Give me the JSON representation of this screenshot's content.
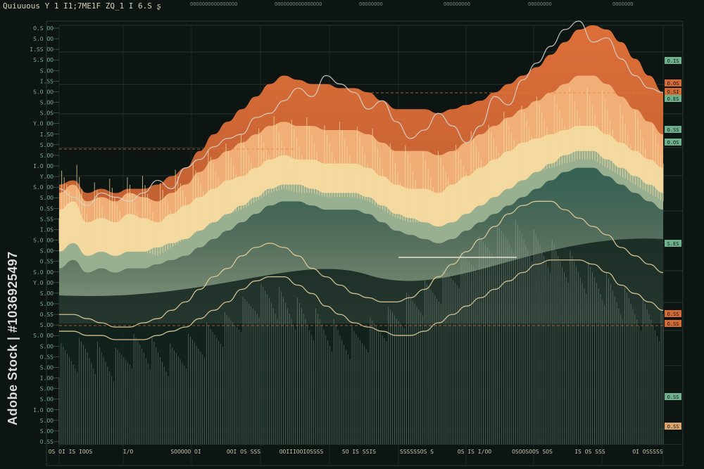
{
  "header": {
    "title": "Quiuuous  Y 1  I1;7ME1F  ZQ_1 I 6.S ʂ"
  },
  "watermark": {
    "text": "Adobe Stock | #1036925497"
  },
  "colors": {
    "background": "#0c1512",
    "grid": "#3c4a44",
    "orange": "#e8743b",
    "peach": "#f2b27a",
    "cream": "#f3dba1",
    "sage": "#8eaa8e",
    "teal": "#2f5e52",
    "deep_teal": "#1c3a33",
    "line_white": "#d7d5cf",
    "line_cream": "#e6cf9c"
  },
  "chart_data": {
    "type": "area",
    "title": "",
    "xlabel": "",
    "ylabel": "",
    "grid": true,
    "x": [
      0,
      1,
      2,
      3,
      4,
      5,
      6,
      7,
      8,
      9,
      10,
      11,
      12,
      13,
      14,
      15,
      16,
      17,
      18,
      19,
      20,
      21,
      22,
      23,
      24,
      25,
      26,
      27,
      28,
      29,
      30,
      31,
      32,
      33,
      34,
      35,
      36,
      37,
      38,
      39,
      40,
      41,
      42,
      43
    ],
    "ylim": [
      0,
      100
    ],
    "series": [
      {
        "values": [
          62,
          63,
          60,
          61,
          60,
          61,
          61,
          62,
          64,
          66,
          70,
          74,
          77,
          80,
          83,
          86,
          88,
          87,
          86,
          86,
          85,
          85,
          84,
          82,
          80,
          80,
          80,
          79,
          80,
          81,
          82,
          84,
          86,
          88,
          90,
          93,
          96,
          99,
          100,
          99,
          96,
          92,
          88,
          84
        ],
        "style": "orange-area"
      },
      {
        "values": [
          60,
          62,
          58,
          59,
          58,
          60,
          59,
          58,
          60,
          62,
          65,
          68,
          70,
          72,
          74,
          76,
          77,
          76,
          76,
          75,
          75,
          75,
          74,
          72,
          70,
          70,
          70,
          69,
          70,
          72,
          74,
          76,
          78,
          80,
          82,
          84,
          86,
          88,
          88,
          86,
          83,
          80,
          77,
          74
        ],
        "style": "peach-area"
      },
      {
        "values": [
          56,
          58,
          53,
          54,
          53,
          55,
          54,
          53,
          55,
          57,
          59,
          61,
          63,
          64,
          66,
          68,
          69,
          68,
          68,
          67,
          67,
          67,
          66,
          64,
          62,
          61,
          61,
          60,
          62,
          64,
          66,
          68,
          70,
          72,
          73,
          74,
          75,
          76,
          76,
          74,
          72,
          70,
          68,
          66
        ],
        "style": "cream-area"
      },
      {
        "values": [
          46,
          48,
          45,
          46,
          45,
          46,
          46,
          47,
          48,
          49,
          51,
          53,
          55,
          57,
          59,
          61,
          62,
          62,
          61,
          60,
          60,
          60,
          59,
          57,
          55,
          54,
          53,
          52,
          53,
          55,
          57,
          59,
          61,
          63,
          65,
          67,
          69,
          70,
          70,
          68,
          66,
          64,
          62,
          60
        ],
        "style": "sage-area"
      },
      {
        "values": [
          42,
          44,
          41,
          42,
          41,
          42,
          42,
          43,
          44,
          45,
          47,
          49,
          51,
          53,
          55,
          57,
          58,
          58,
          57,
          56,
          56,
          56,
          55,
          53,
          51,
          50,
          49,
          48,
          49,
          51,
          53,
          55,
          57,
          59,
          61,
          63,
          65,
          66,
          66,
          64,
          62,
          60,
          58,
          56
        ],
        "style": "teal-area"
      },
      {
        "values": [
          61,
          59,
          57,
          60,
          59,
          58,
          60,
          63,
          61,
          66,
          68,
          71,
          73,
          74,
          78,
          79,
          82,
          85,
          83,
          88,
          86,
          84,
          80,
          82,
          77,
          73,
          75,
          79,
          76,
          72,
          76,
          83,
          81,
          87,
          91,
          95,
          99,
          101,
          96,
          97,
          92,
          88,
          85,
          84
        ],
        "style": "white-line"
      },
      {
        "values": [
          27,
          27,
          26,
          26,
          25,
          25,
          25,
          26,
          27,
          28,
          30,
          32,
          34,
          37,
          39,
          40,
          40,
          38,
          36,
          33,
          31,
          29,
          28,
          27,
          26,
          26,
          27,
          29,
          31,
          33,
          35,
          37,
          39,
          41,
          43,
          44,
          44,
          44,
          43,
          41,
          38,
          36,
          34,
          32
        ],
        "style": "cream-line"
      },
      {
        "values": [
          31,
          31,
          30,
          29,
          28,
          28,
          29,
          30,
          32,
          34,
          37,
          40,
          42,
          45,
          47,
          48,
          47,
          45,
          42,
          40,
          38,
          36,
          35,
          34,
          34,
          35,
          37,
          40,
          43,
          46,
          49,
          52,
          55,
          57,
          58,
          58,
          56,
          54,
          52,
          50,
          47,
          45,
          43,
          41
        ],
        "style": "cream-line"
      },
      {
        "values": [
          20,
          21,
          22,
          20,
          19,
          22,
          23,
          21,
          20,
          22,
          24,
          26,
          28,
          31,
          34,
          35,
          33,
          31,
          29,
          27,
          25,
          24,
          26,
          28,
          30,
          33,
          35,
          37,
          40,
          43,
          46,
          48,
          50,
          49,
          47,
          45,
          43,
          41,
          39,
          37,
          34,
          32,
          30,
          28
        ],
        "style": "volume"
      }
    ]
  },
  "y_tick_labels": [
    "O.S OO",
    "S.O OO",
    "I.SS OO",
    "S.S OO",
    "S.OO",
    "I.SS",
    "S.O OO",
    "S.OO",
    "S.OS",
    "Y.O OO",
    "I.SO",
    "S.OO",
    "S.OO",
    "I.O OO",
    "Y.OO",
    "S.O OO",
    "S.OO",
    "O.SS",
    "S.SS",
    "I.OS",
    "S.O OO",
    "S.OO",
    "O.SS",
    "S.O OO",
    "Y.O OO",
    "S.OO",
    "S.OO",
    "O.SS",
    "S.OO",
    "S.O OO",
    "S.OO",
    "O.SS",
    "S.OO",
    "I.OO",
    "S.OO",
    "S.OO",
    "I.O OO",
    "S.OO",
    "S.OO",
    "O.SS"
  ],
  "right_badges": [
    {
      "label": "O.IS",
      "color": "#7ac29a",
      "kind": "green"
    },
    {
      "label": "O.OS",
      "color": "#e8743b",
      "kind": "orange"
    },
    {
      "label": "O.SI",
      "color": "#e8743b",
      "kind": "orange"
    },
    {
      "label": "O.ES",
      "color": "#7ac29a",
      "kind": "green"
    },
    {
      "label": "O.SS",
      "color": "#7ac29a",
      "kind": "green"
    },
    {
      "label": "O.OS",
      "color": "#7ac29a",
      "kind": "green"
    },
    {
      "label": "S.ES",
      "color": "#7ac29a",
      "kind": "green"
    },
    {
      "label": "O.SS",
      "color": "#e8743b",
      "kind": "orange"
    },
    {
      "label": "O.SS",
      "color": "#e8743b",
      "kind": "orange"
    },
    {
      "label": "O.SS",
      "color": "#7ac29a",
      "kind": "green"
    },
    {
      "label": "O.SS",
      "color": "#f2b27a",
      "kind": "peach"
    }
  ],
  "x_tick_labels": [
    "OS OI  IS IOOS",
    "I/O",
    "SOOOOO OI",
    "OOI  OS SSS",
    "OOIIIOOIOSSSS",
    "SO IS SSIS",
    "SSSSSSOS S",
    "OS IS I/OO",
    "OSOOSOOS SOS",
    "IS  OS SSS",
    "OI OSSSSS"
  ],
  "top_labels": [
    "OOOOOOOOOOOOOOOO",
    "OOOOOOOOOOOOOOOO",
    "OOOOOOOO",
    "OOOOOOOOO",
    "OOOOOOOO",
    "OOOOOOO"
  ]
}
